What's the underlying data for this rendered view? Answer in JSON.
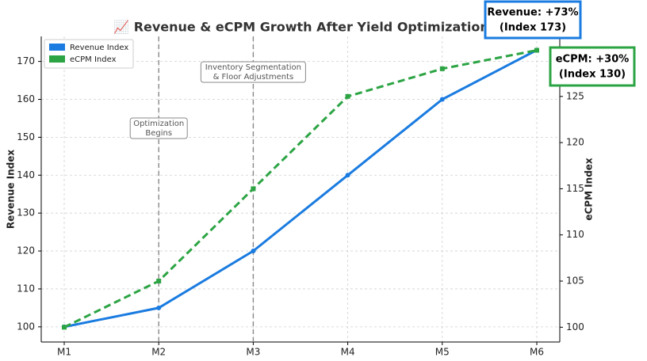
{
  "chart_data": {
    "type": "line",
    "title": "📈 Revenue & eCPM Growth After Yield Optimization",
    "categories": [
      "M1",
      "M2",
      "M3",
      "M4",
      "M5",
      "M6"
    ],
    "series": [
      {
        "name": "Revenue Index",
        "color": "#1a7be0",
        "values": [
          100,
          105,
          120,
          140,
          160,
          173
        ],
        "axis": "y",
        "dash": false,
        "marker": "circle"
      },
      {
        "name": "eCPM Index",
        "color": "#2ca444",
        "values": [
          100,
          105,
          115,
          125,
          128,
          130
        ],
        "axis": "y2",
        "dash": true,
        "marker": "square"
      }
    ],
    "ylabel": "Revenue Index",
    "y2label": "eCPM Index",
    "ylim": [
      96,
      176.6
    ],
    "yticks": [
      100,
      110,
      120,
      130,
      140,
      150,
      160,
      170
    ],
    "y2lim": [
      98.4,
      131.5
    ],
    "y2ticks": [
      100,
      105,
      110,
      115,
      120,
      125
    ],
    "grid": true,
    "legend": "upper left",
    "annotations": [
      {
        "x": "M2",
        "lines": [
          "Optimization",
          "Begins"
        ]
      },
      {
        "x": "M3",
        "lines": [
          "Inventory Segmentation",
          "& Floor Adjustments"
        ]
      }
    ],
    "callouts": [
      {
        "lines": [
          "Revenue: +73%",
          "(Index 173)"
        ],
        "color": "#1a7be0"
      },
      {
        "lines": [
          "eCPM: +30%",
          "(Index 130)"
        ],
        "color": "#2ca444"
      }
    ]
  }
}
